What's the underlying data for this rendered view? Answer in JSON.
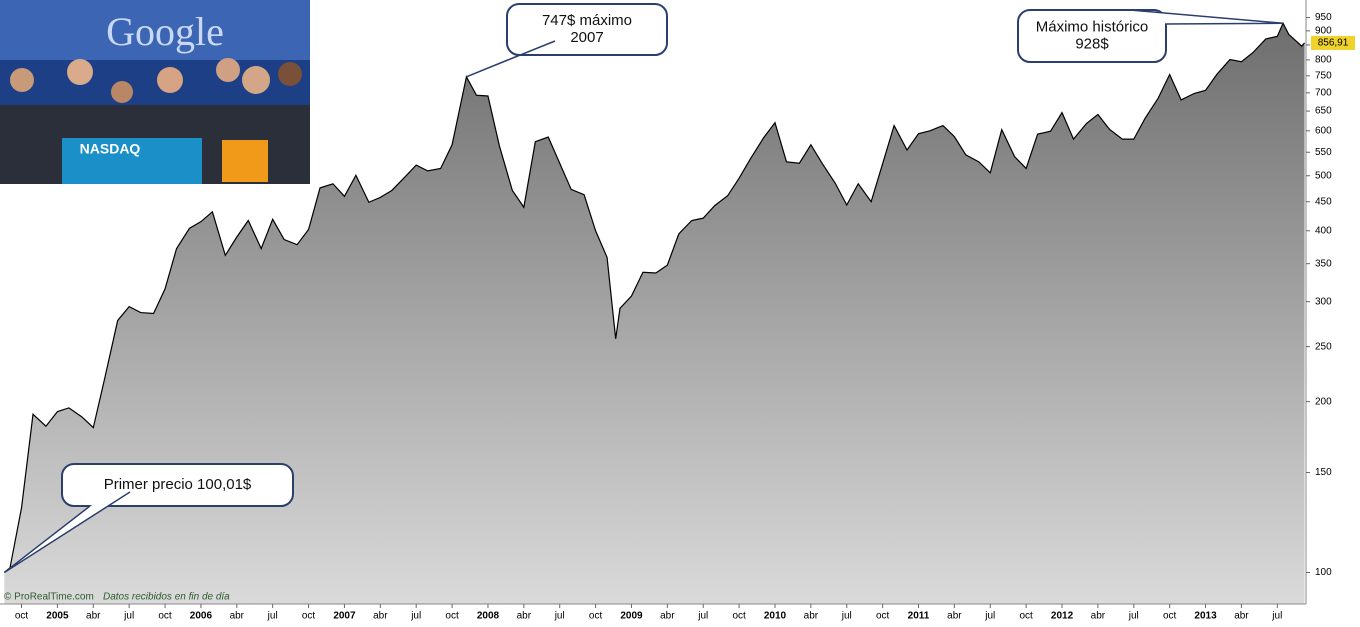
{
  "chart_data": {
    "type": "area",
    "source": "© ProRealTime.com",
    "source_note": "Datos recibidos en fin de día",
    "photo_logo": "Google",
    "photo_sign": "NASDAQ",
    "log_scale": true,
    "grid": false,
    "line_color": "#000000",
    "fill_top": "#6e6e6e",
    "fill_bottom": "#dadada",
    "xlim": [
      2004.6,
      2013.7
    ],
    "ylim": [
      88,
      1020
    ],
    "xticks": [
      {
        "value": 2004.75,
        "label": "oct"
      },
      2005,
      {
        "value": 2005.25,
        "label": "abr"
      },
      {
        "value": 2005.5,
        "label": "jul"
      },
      {
        "value": 2005.75,
        "label": "oct"
      },
      2006,
      {
        "value": 2006.25,
        "label": "abr"
      },
      {
        "value": 2006.5,
        "label": "jul"
      },
      {
        "value": 2006.75,
        "label": "oct"
      },
      2007,
      {
        "value": 2007.25,
        "label": "abr"
      },
      {
        "value": 2007.5,
        "label": "jul"
      },
      {
        "value": 2007.75,
        "label": "oct"
      },
      2008,
      {
        "value": 2008.25,
        "label": "abr"
      },
      {
        "value": 2008.5,
        "label": "jul"
      },
      {
        "value": 2008.75,
        "label": "oct"
      },
      2009,
      {
        "value": 2009.25,
        "label": "abr"
      },
      {
        "value": 2009.5,
        "label": "jul"
      },
      {
        "value": 2009.75,
        "label": "oct"
      },
      2010,
      {
        "value": 2010.25,
        "label": "abr"
      },
      {
        "value": 2010.5,
        "label": "jul"
      },
      {
        "value": 2010.75,
        "label": "oct"
      },
      2011,
      {
        "value": 2011.25,
        "label": "abr"
      },
      {
        "value": 2011.5,
        "label": "jul"
      },
      {
        "value": 2011.75,
        "label": "oct"
      },
      2012,
      {
        "value": 2012.25,
        "label": "abr"
      },
      {
        "value": 2012.5,
        "label": "jul"
      },
      {
        "value": 2012.75,
        "label": "oct"
      },
      2013,
      {
        "value": 2013.25,
        "label": "abr"
      },
      {
        "value": 2013.5,
        "label": "jul"
      }
    ],
    "yticks": [
      100,
      150,
      200,
      250,
      300,
      350,
      400,
      450,
      500,
      550,
      600,
      650,
      700,
      750,
      800,
      850,
      900,
      950
    ],
    "x": [
      2004.63,
      2004.67,
      2004.75,
      2004.83,
      2004.92,
      2005.0,
      2005.08,
      2005.17,
      2005.25,
      2005.33,
      2005.42,
      2005.5,
      2005.58,
      2005.67,
      2005.75,
      2005.83,
      2005.92,
      2006.0,
      2006.08,
      2006.17,
      2006.25,
      2006.33,
      2006.42,
      2006.5,
      2006.58,
      2006.67,
      2006.75,
      2006.83,
      2006.92,
      2007.0,
      2007.08,
      2007.17,
      2007.25,
      2007.33,
      2007.42,
      2007.5,
      2007.58,
      2007.67,
      2007.75,
      2007.83,
      2007.85,
      2007.92,
      2008.0,
      2008.08,
      2008.17,
      2008.25,
      2008.33,
      2008.42,
      2008.5,
      2008.58,
      2008.67,
      2008.75,
      2008.83,
      2008.89,
      2008.92,
      2009.0,
      2009.08,
      2009.17,
      2009.25,
      2009.33,
      2009.42,
      2009.5,
      2009.58,
      2009.67,
      2009.75,
      2009.83,
      2009.92,
      2010.0,
      2010.08,
      2010.17,
      2010.25,
      2010.33,
      2010.42,
      2010.5,
      2010.58,
      2010.67,
      2010.75,
      2010.83,
      2010.92,
      2011.0,
      2011.08,
      2011.17,
      2011.25,
      2011.33,
      2011.42,
      2011.5,
      2011.58,
      2011.67,
      2011.75,
      2011.83,
      2011.92,
      2012.0,
      2012.08,
      2012.17,
      2012.25,
      2012.33,
      2012.42,
      2012.5,
      2012.58,
      2012.67,
      2012.75,
      2012.83,
      2012.92,
      2013.0,
      2013.08,
      2013.17,
      2013.25,
      2013.33,
      2013.42,
      2013.5,
      2013.54,
      2013.58,
      2013.67,
      2013.69
    ],
    "values": [
      100.01,
      102,
      130,
      190,
      181,
      192,
      195,
      188,
      180,
      220,
      278,
      294,
      287,
      286,
      316,
      372,
      404,
      415,
      432,
      362,
      390,
      417,
      372,
      419,
      386,
      378,
      402,
      476,
      484,
      460,
      501,
      449,
      458,
      471,
      497,
      522,
      510,
      515,
      567,
      707,
      747,
      693,
      691,
      564,
      471,
      440,
      574,
      585,
      526,
      473,
      463,
      400,
      359,
      258,
      292,
      307,
      338,
      337,
      348,
      395,
      417,
      421,
      443,
      461,
      495,
      536,
      583,
      620,
      529,
      526,
      567,
      525,
      485,
      444,
      484,
      450,
      525,
      613,
      555,
      593,
      600,
      613,
      586,
      544,
      529,
      506,
      603,
      540,
      515,
      592,
      599,
      646,
      580,
      618,
      641,
      604,
      580,
      580,
      632,
      685,
      754,
      680,
      698,
      707,
      755,
      801,
      794,
      824,
      871,
      880,
      928,
      887,
      846,
      856.91
    ],
    "last_price": {
      "value": 856.91,
      "label": "856,91"
    },
    "annotations": [
      {
        "text": [
          "Primer precio 100,01$"
        ],
        "x": 2004.63,
        "y": 100.01
      },
      {
        "text": [
          "747$ máximo",
          "2007"
        ],
        "x": 2007.85,
        "y": 747
      },
      {
        "text": [
          "Máximo histórico",
          "928$"
        ],
        "x": 2013.54,
        "y": 928
      }
    ]
  }
}
